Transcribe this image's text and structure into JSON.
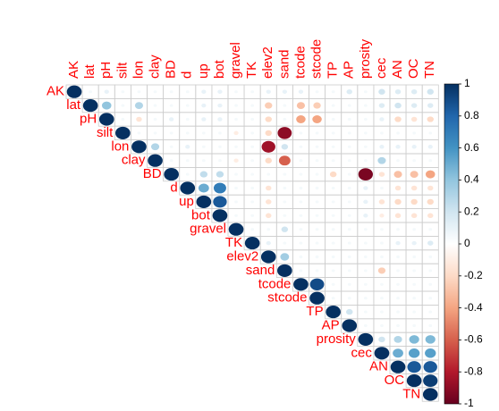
{
  "chart_data": {
    "type": "corrplot",
    "variables": [
      "AK",
      "lat",
      "pH",
      "silt",
      "lon",
      "clay",
      "BD",
      "d",
      "up",
      "bot",
      "gravel",
      "TK",
      "elev2",
      "sand",
      "tcode",
      "stcode",
      "TP",
      "AP",
      "prosity",
      "cec",
      "AN",
      "OC",
      "TN"
    ],
    "values": [
      [
        1,
        0.05,
        0.1,
        0.05,
        0.05,
        0.05,
        0.05,
        0.05,
        0.1,
        0.1,
        0.05,
        0.05,
        0.1,
        0.1,
        0.1,
        0.05,
        0.05,
        0.15,
        0.05,
        0.2,
        0.15,
        0.15,
        0.2
      ],
      [
        null,
        1,
        0.4,
        0.05,
        0.3,
        0.05,
        0.05,
        0.05,
        0.1,
        0.1,
        0.05,
        0.05,
        -0.25,
        0.05,
        -0.3,
        -0.25,
        0.05,
        0.05,
        0.05,
        0.15,
        0.2,
        0.15,
        0.15
      ],
      [
        null,
        null,
        1,
        0.05,
        -0.15,
        0.05,
        0.1,
        0.05,
        0.1,
        0.1,
        0.05,
        0.05,
        -0.2,
        0.05,
        -0.4,
        -0.4,
        0.05,
        0.05,
        0.05,
        0.1,
        -0.2,
        -0.15,
        -0.2
      ],
      [
        null,
        null,
        null,
        1,
        0.05,
        0.05,
        0.05,
        0.05,
        0.05,
        0.05,
        -0.1,
        0.05,
        -0.2,
        -0.9,
        0.05,
        0.05,
        0.05,
        0.05,
        0.05,
        0.05,
        0.05,
        0.05,
        0.05
      ],
      [
        null,
        null,
        null,
        null,
        1,
        0.3,
        0.05,
        0.1,
        0.05,
        0.05,
        0.05,
        0.05,
        -0.85,
        0.2,
        0.05,
        0.05,
        0.05,
        0.05,
        0.05,
        0.1,
        0.1,
        0.1,
        0.1
      ],
      [
        null,
        null,
        null,
        null,
        null,
        1,
        0.05,
        0.05,
        0.05,
        0.05,
        -0.1,
        0.05,
        -0.2,
        -0.6,
        0.05,
        0.05,
        0.05,
        0.05,
        0.05,
        0.3,
        0.05,
        0.05,
        0.05
      ],
      [
        null,
        null,
        null,
        null,
        null,
        null,
        1,
        0.05,
        0.25,
        0.25,
        0.05,
        0.05,
        0.05,
        0.05,
        0.05,
        0.05,
        -0.2,
        0.05,
        -0.95,
        -0.15,
        -0.3,
        -0.3,
        -0.4
      ],
      [
        null,
        null,
        null,
        null,
        null,
        null,
        null,
        1,
        0.5,
        0.7,
        0.05,
        0.05,
        -0.15,
        0.05,
        0.05,
        0.05,
        0.05,
        0.05,
        0.1,
        0.05,
        -0.15,
        -0.15,
        -0.15
      ],
      [
        null,
        null,
        null,
        null,
        null,
        null,
        null,
        null,
        1,
        0.85,
        0.05,
        0.05,
        -0.15,
        0.05,
        0.05,
        0.05,
        0.05,
        0.05,
        0.1,
        -0.15,
        -0.2,
        -0.2,
        -0.2
      ],
      [
        null,
        null,
        null,
        null,
        null,
        null,
        null,
        null,
        null,
        1,
        0.05,
        0.05,
        -0.15,
        0.05,
        0.05,
        0.05,
        0.05,
        0.05,
        0.1,
        -0.1,
        -0.15,
        -0.15,
        -0.15
      ],
      [
        null,
        null,
        null,
        null,
        null,
        null,
        null,
        null,
        null,
        null,
        1,
        0.05,
        0.05,
        0.2,
        0.05,
        0.05,
        0.05,
        0.05,
        0.05,
        0.05,
        0.05,
        0.05,
        0.05
      ],
      [
        null,
        null,
        null,
        null,
        null,
        null,
        null,
        null,
        null,
        null,
        null,
        1,
        0.1,
        0.05,
        0.05,
        0.05,
        0.05,
        0.05,
        0.05,
        0.05,
        0.1,
        0.1,
        0.15
      ],
      [
        null,
        null,
        null,
        null,
        null,
        null,
        null,
        null,
        null,
        null,
        null,
        null,
        1,
        0.35,
        0.05,
        0.05,
        0.05,
        0.05,
        0.05,
        0.05,
        0.05,
        0.05,
        0.05
      ],
      [
        null,
        null,
        null,
        null,
        null,
        null,
        null,
        null,
        null,
        null,
        null,
        null,
        null,
        1,
        0.05,
        0.05,
        0.05,
        0.05,
        0.05,
        -0.25,
        0.05,
        0.05,
        0.05
      ],
      [
        null,
        null,
        null,
        null,
        null,
        null,
        null,
        null,
        null,
        null,
        null,
        null,
        null,
        null,
        1,
        0.9,
        0.05,
        0.05,
        0.05,
        0.05,
        0.05,
        0.05,
        0.05
      ],
      [
        null,
        null,
        null,
        null,
        null,
        null,
        null,
        null,
        null,
        null,
        null,
        null,
        null,
        null,
        null,
        1,
        0.05,
        0.05,
        0.05,
        0.05,
        0.05,
        0.05,
        0.05
      ],
      [
        null,
        null,
        null,
        null,
        null,
        null,
        null,
        null,
        null,
        null,
        null,
        null,
        null,
        null,
        null,
        null,
        1,
        0.2,
        0.05,
        0.05,
        0.05,
        0.05,
        0.05
      ],
      [
        null,
        null,
        null,
        null,
        null,
        null,
        null,
        null,
        null,
        null,
        null,
        null,
        null,
        null,
        null,
        null,
        null,
        1,
        0.05,
        0.05,
        0.05,
        0.05,
        0.05
      ],
      [
        null,
        null,
        null,
        null,
        null,
        null,
        null,
        null,
        null,
        null,
        null,
        null,
        null,
        null,
        null,
        null,
        null,
        null,
        1,
        0.2,
        0.3,
        0.45,
        0.45
      ],
      [
        null,
        null,
        null,
        null,
        null,
        null,
        null,
        null,
        null,
        null,
        null,
        null,
        null,
        null,
        null,
        null,
        null,
        null,
        null,
        1,
        0.5,
        0.55,
        0.55
      ],
      [
        null,
        null,
        null,
        null,
        null,
        null,
        null,
        null,
        null,
        null,
        null,
        null,
        null,
        null,
        null,
        null,
        null,
        null,
        null,
        null,
        1,
        0.85,
        0.85
      ],
      [
        null,
        null,
        null,
        null,
        null,
        null,
        null,
        null,
        null,
        null,
        null,
        null,
        null,
        null,
        null,
        null,
        null,
        null,
        null,
        null,
        null,
        1,
        0.95
      ],
      [
        null,
        null,
        null,
        null,
        null,
        null,
        null,
        null,
        null,
        null,
        null,
        null,
        null,
        null,
        null,
        null,
        null,
        null,
        null,
        null,
        null,
        null,
        1
      ]
    ],
    "palette": [
      "#67001F",
      "#B2182B",
      "#D6604D",
      "#F4A582",
      "#FDDBC7",
      "#FFFFFF",
      "#D1E5F0",
      "#92C5DE",
      "#4393C3",
      "#2166AC",
      "#053061"
    ],
    "ylim": [
      -1,
      1
    ],
    "yticks": [
      -1,
      -0.8,
      -0.6,
      -0.4,
      -0.2,
      0,
      0.2,
      0.4,
      0.6,
      0.8,
      1
    ]
  }
}
